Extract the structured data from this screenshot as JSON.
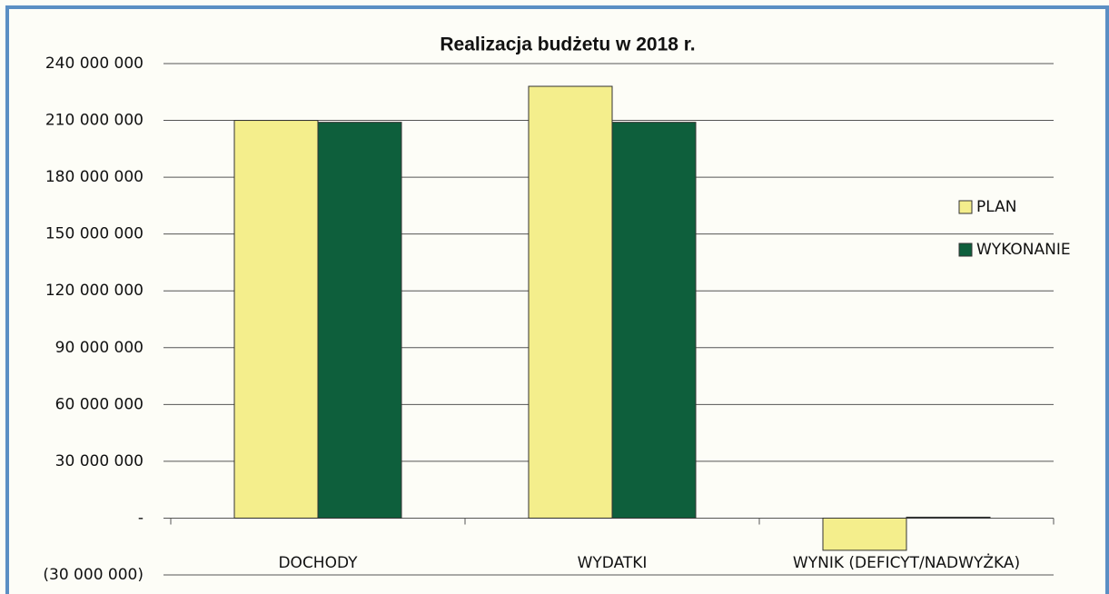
{
  "chart_data": {
    "type": "bar",
    "title": "Realizacja budżetu w 2018 r.",
    "categories": [
      "DOCHODY",
      "WYDATKI",
      "WYNIK (DEFICYT/NADWYŻKA)"
    ],
    "series": [
      {
        "name": "PLAN",
        "color": "#f4ee8c",
        "values": [
          210000000,
          228000000,
          -17000000
        ]
      },
      {
        "name": "WYKONANIE",
        "color": "#0e5f3c",
        "values": [
          209000000,
          209000000,
          500000
        ]
      }
    ],
    "ylim": [
      -30000000,
      240000000
    ],
    "yticks": [
      {
        "value": -30000000,
        "label": "(30 000 000)"
      },
      {
        "value": 0,
        "label": "-"
      },
      {
        "value": 30000000,
        "label": "30 000 000"
      },
      {
        "value": 60000000,
        "label": "60 000 000"
      },
      {
        "value": 90000000,
        "label": "90 000 000"
      },
      {
        "value": 120000000,
        "label": "120 000 000"
      },
      {
        "value": 150000000,
        "label": "150 000 000"
      },
      {
        "value": 180000000,
        "label": "180 000 000"
      },
      {
        "value": 210000000,
        "label": "210 000 000"
      },
      {
        "value": 240000000,
        "label": "240 000 000"
      }
    ],
    "grid": true,
    "legend": "right"
  }
}
